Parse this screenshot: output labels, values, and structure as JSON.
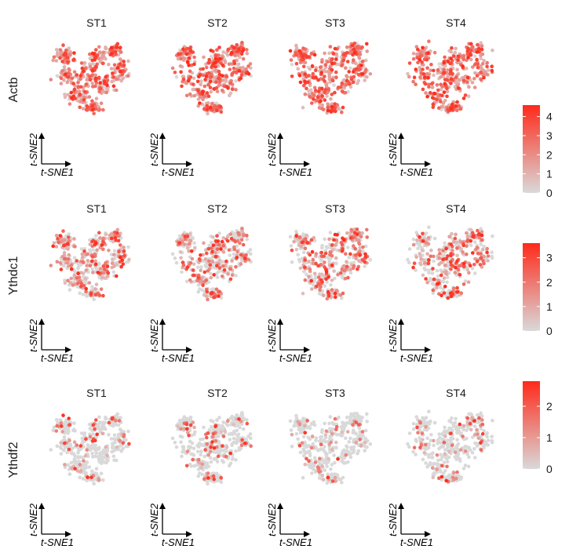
{
  "chart_data": {
    "type": "scatter",
    "layout": "grid",
    "panels": [
      "ST1",
      "ST2",
      "ST3",
      "ST4"
    ],
    "genes": [
      {
        "name": "Actb",
        "color_range": [
          0,
          4.6
        ],
        "ticks": [
          "0",
          "1",
          "2",
          "3",
          "4"
        ],
        "tick_values": [
          0,
          1,
          2,
          3,
          4
        ],
        "expressed_fraction": 0.92
      },
      {
        "name": "Ythdc1",
        "color_range": [
          0,
          3.6
        ],
        "ticks": [
          "0",
          "1",
          "2",
          "3"
        ],
        "tick_values": [
          0,
          1,
          2,
          3
        ],
        "expressed_fraction": 0.5
      },
      {
        "name": "Ythdf2",
        "color_range": [
          0,
          2.8
        ],
        "ticks": [
          "0",
          "1",
          "2"
        ],
        "tick_values": [
          0,
          1,
          2
        ],
        "expressed_fraction": 0.15
      }
    ],
    "xlabel": "t-SNE1",
    "ylabel": "t-SNE2",
    "color_low": "#d9d9d9",
    "color_high": "#ff2a1a",
    "points_per_panel": 420,
    "grid": false
  }
}
